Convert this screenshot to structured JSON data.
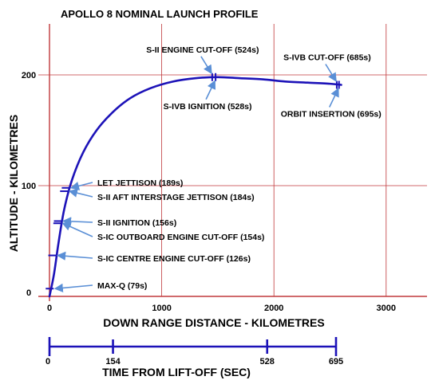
{
  "chart_data": [
    {
      "type": "line",
      "title": "APOLLO 8  NOMINAL LAUNCH PROFILE",
      "xlabel": "DOWN RANGE DISTANCE  -  KILOMETRES",
      "ylabel": "ALTITUDE  -  KILOMETRES",
      "xlim": [
        -20,
        3450
      ],
      "ylim": [
        0,
        245
      ],
      "grid": true,
      "xticks": [
        0,
        1000,
        2000,
        3000
      ],
      "yticks": [
        0,
        100,
        200
      ],
      "colors": {
        "curve": "#1c12b8",
        "grid": "#c0393b",
        "axis": "#c0393b",
        "arrow": "#5a8fd6",
        "text": "#000000"
      },
      "series": [
        {
          "x": [
            0,
            40,
            80,
            130,
            200,
            300,
            420,
            560,
            720,
            900,
            1100,
            1300,
            1500,
            1700,
            1900,
            2100,
            2300,
            2500,
            2600
          ],
          "y": [
            0,
            20,
            48,
            78,
            105,
            130,
            150,
            166,
            179,
            188,
            194,
            197,
            198,
            197,
            196,
            194,
            193,
            192,
            191
          ]
        }
      ],
      "annotations": [
        {
          "label": "MAX-Q (79s)",
          "x": 2,
          "y": 7,
          "arrow": "left"
        },
        {
          "label": "S-IC CENTRE ENGINE CUT-OFF (126s)",
          "x": 25,
          "y": 37,
          "arrow": "left"
        },
        {
          "label": "S-IC OUTBOARD ENGINE CUT-OFF (154s)",
          "x": 70,
          "y": 66,
          "arrow": "left"
        },
        {
          "label": "S-II IGNITION (156s)",
          "x": 75,
          "y": 68,
          "arrow": "left"
        },
        {
          "label": "S-II AFT INTERSTAGE JETTISON (184s)",
          "x": 130,
          "y": 95,
          "arrow": "left"
        },
        {
          "label": "LET JETTISON (189s)",
          "x": 145,
          "y": 98,
          "arrow": "left"
        },
        {
          "label": "S-II ENGINE CUT-OFF (524s)",
          "x": 1450,
          "y": 198,
          "arrow": "above"
        },
        {
          "label": "S-IVB IGNITION (528s)",
          "x": 1480,
          "y": 198,
          "arrow": "below"
        },
        {
          "label": "S-IVB CUT-OFF (685s)",
          "x": 2560,
          "y": 191,
          "arrow": "above"
        },
        {
          "label": "ORBIT INSERTION (695s)",
          "x": 2580,
          "y": 191,
          "arrow": "below"
        }
      ]
    },
    {
      "type": "timeline",
      "xlabel": "TIME FROM LIFT-OFF (SEC)",
      "tick_values": [
        0,
        154,
        528,
        695
      ],
      "tick_labels": [
        "0",
        "154",
        "528",
        "695"
      ]
    }
  ]
}
